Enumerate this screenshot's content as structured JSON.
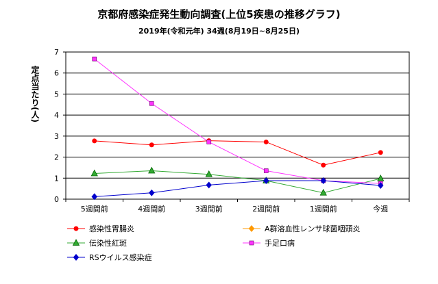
{
  "title": "京都府感染症発生動向調査(上位5疾患の推移グラフ)",
  "subtitle": "2019年(令和元年) 34週(8月19日~8月25日)",
  "chart_data": {
    "type": "line",
    "categories": [
      "5週間前",
      "4週間前",
      "3週間前",
      "2週間前",
      "1週間前",
      "今週"
    ],
    "ylabel": "定点当たり(人)",
    "ylim": [
      0,
      7
    ],
    "yticks": [
      "0",
      "1",
      "2",
      "3",
      "4",
      "5",
      "6",
      "7"
    ],
    "grid": true,
    "legend_position": "bottom",
    "series": [
      {
        "name": "感染性胃腸炎",
        "color": "#ff0000",
        "marker": "circle",
        "values": [
          2.77,
          2.58,
          2.78,
          2.72,
          1.62,
          2.22
        ]
      },
      {
        "name": "A群溶血性レンサ球菌咽頭炎",
        "color": "#ff9900",
        "marker": "diamond",
        "values": [
          null,
          null,
          null,
          null,
          null,
          null
        ]
      },
      {
        "name": "伝染性紅斑",
        "color": "#33aa33",
        "marker": "triangle",
        "values": [
          1.22,
          1.35,
          1.18,
          0.88,
          0.3,
          0.98
        ]
      },
      {
        "name": "手足口病",
        "color": "#ff33ff",
        "marker": "square",
        "values": [
          6.67,
          4.55,
          2.72,
          1.35,
          0.88,
          0.75
        ]
      },
      {
        "name": "RSウイルス感染症",
        "color": "#0000cc",
        "marker": "diamond",
        "values": [
          0.12,
          0.3,
          0.67,
          0.88,
          0.88,
          0.65
        ]
      }
    ]
  }
}
